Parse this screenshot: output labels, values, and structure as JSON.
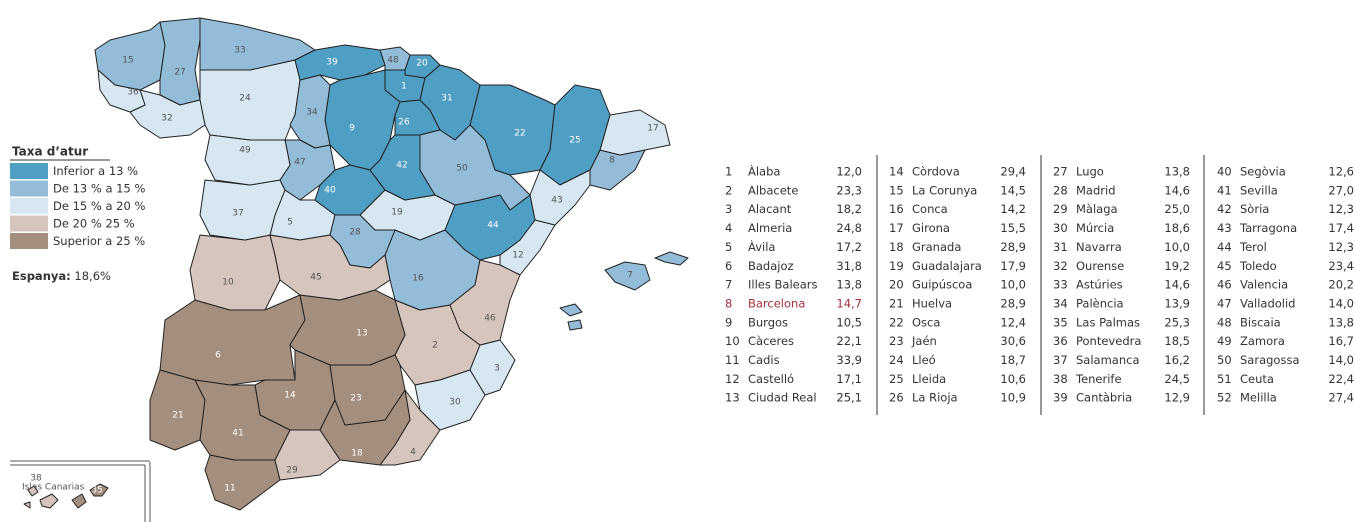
{
  "legend": {
    "title": "Taxa d’atur",
    "items": [
      {
        "label": "Inferior a 13 %",
        "color": "#4f9ec4"
      },
      {
        "label": "De 13 % a 15 %",
        "color": "#93bcd8"
      },
      {
        "label": "De 15 % a 20 %",
        "color": "#d7e7f1"
      },
      {
        "label": "De 20 % 25 %",
        "color": "#d5c5bd"
      },
      {
        "label": "Superior a 25 %",
        "color": "#a48e7d"
      }
    ]
  },
  "national": {
    "label": "Espanya:",
    "value": "18,6%"
  },
  "inset_label": "Islas Canarias",
  "provinces": [
    {
      "n": 1,
      "name": "Àlaba",
      "value": "12,0",
      "color": "#4f9ec4"
    },
    {
      "n": 2,
      "name": "Albacete",
      "value": "23,3",
      "color": "#d5c5bd"
    },
    {
      "n": 3,
      "name": "Alacant",
      "value": "18,2",
      "color": "#d7e7f1"
    },
    {
      "n": 4,
      "name": "Almeria",
      "value": "24,8",
      "color": "#d5c5bd"
    },
    {
      "n": 5,
      "name": "Àvila",
      "value": "17,2",
      "color": "#d7e7f1"
    },
    {
      "n": 6,
      "name": "Badajoz",
      "value": "31,8",
      "color": "#a48e7d"
    },
    {
      "n": 7,
      "name": "Illes Balears",
      "value": "13,8",
      "color": "#93bcd8"
    },
    {
      "n": 8,
      "name": "Barcelona",
      "value": "14,7",
      "color": "#93bcd8",
      "highlight": true
    },
    {
      "n": 9,
      "name": "Burgos",
      "value": "10,5",
      "color": "#4f9ec4"
    },
    {
      "n": 10,
      "name": "Càceres",
      "value": "22,1",
      "color": "#d5c5bd"
    },
    {
      "n": 11,
      "name": "Cadis",
      "value": "33,9",
      "color": "#a48e7d"
    },
    {
      "n": 12,
      "name": "Castelló",
      "value": "17,1",
      "color": "#d7e7f1"
    },
    {
      "n": 13,
      "name": "Ciudad Real",
      "value": "25,1",
      "color": "#a48e7d"
    },
    {
      "n": 14,
      "name": "Còrdova",
      "value": "29,4",
      "color": "#a48e7d"
    },
    {
      "n": 15,
      "name": "La Corunya",
      "value": "14,5",
      "color": "#93bcd8"
    },
    {
      "n": 16,
      "name": "Conca",
      "value": "14,2",
      "color": "#93bcd8"
    },
    {
      "n": 17,
      "name": "Girona",
      "value": "15,5",
      "color": "#d7e7f1"
    },
    {
      "n": 18,
      "name": "Granada",
      "value": "28,9",
      "color": "#a48e7d"
    },
    {
      "n": 19,
      "name": "Guadalajara",
      "value": "17,9",
      "color": "#d7e7f1"
    },
    {
      "n": 20,
      "name": "Guipúscoa",
      "value": "10,0",
      "color": "#4f9ec4"
    },
    {
      "n": 21,
      "name": "Huelva",
      "value": "28,9",
      "color": "#a48e7d"
    },
    {
      "n": 22,
      "name": "Osca",
      "value": "12,4",
      "color": "#4f9ec4"
    },
    {
      "n": 23,
      "name": "Jaén",
      "value": "30,6",
      "color": "#a48e7d"
    },
    {
      "n": 24,
      "name": "Lleó",
      "value": "18,7",
      "color": "#d7e7f1"
    },
    {
      "n": 25,
      "name": "Lleida",
      "value": "10,6",
      "color": "#4f9ec4"
    },
    {
      "n": 26,
      "name": "La Rioja",
      "value": "10,9",
      "color": "#4f9ec4"
    },
    {
      "n": 27,
      "name": "Lugo",
      "value": "13,8",
      "color": "#93bcd8"
    },
    {
      "n": 28,
      "name": "Madrid",
      "value": "14,6",
      "color": "#93bcd8"
    },
    {
      "n": 29,
      "name": "Màlaga",
      "value": "25,0",
      "color": "#d5c5bd"
    },
    {
      "n": 30,
      "name": "Múrcia",
      "value": "18,6",
      "color": "#d7e7f1"
    },
    {
      "n": 31,
      "name": "Navarra",
      "value": "10,0",
      "color": "#4f9ec4"
    },
    {
      "n": 32,
      "name": "Ourense",
      "value": "19,2",
      "color": "#d7e7f1"
    },
    {
      "n": 33,
      "name": "Astúries",
      "value": "14,6",
      "color": "#93bcd8"
    },
    {
      "n": 34,
      "name": "Palència",
      "value": "13,9",
      "color": "#93bcd8"
    },
    {
      "n": 35,
      "name": "Las Palmas",
      "value": "25,3",
      "color": "#a48e7d"
    },
    {
      "n": 36,
      "name": "Pontevedra",
      "value": "18,5",
      "color": "#d7e7f1"
    },
    {
      "n": 37,
      "name": "Salamanca",
      "value": "16,2",
      "color": "#d7e7f1"
    },
    {
      "n": 38,
      "name": "Tenerife",
      "value": "24,5",
      "color": "#d5c5bd"
    },
    {
      "n": 39,
      "name": "Cantàbria",
      "value": "12,9",
      "color": "#4f9ec4"
    },
    {
      "n": 40,
      "name": "Segòvia",
      "value": "12,6",
      "color": "#4f9ec4"
    },
    {
      "n": 41,
      "name": "Sevilla",
      "value": "27,0",
      "color": "#a48e7d"
    },
    {
      "n": 42,
      "name": "Sòria",
      "value": "12,3",
      "color": "#4f9ec4"
    },
    {
      "n": 43,
      "name": "Tarragona",
      "value": "17,4",
      "color": "#d7e7f1"
    },
    {
      "n": 44,
      "name": "Terol",
      "value": "12,3",
      "color": "#4f9ec4"
    },
    {
      "n": 45,
      "name": "Toledo",
      "value": "23,4",
      "color": "#d5c5bd"
    },
    {
      "n": 46,
      "name": "Valencia",
      "value": "20,2",
      "color": "#d5c5bd"
    },
    {
      "n": 47,
      "name": "Valladolid",
      "value": "14,0",
      "color": "#93bcd8"
    },
    {
      "n": 48,
      "name": "Biscaia",
      "value": "13,8",
      "color": "#93bcd8"
    },
    {
      "n": 49,
      "name": "Zamora",
      "value": "16,7",
      "color": "#d7e7f1"
    },
    {
      "n": 50,
      "name": "Saragossa",
      "value": "14,0",
      "color": "#93bcd8"
    },
    {
      "n": 51,
      "name": "Ceuta",
      "value": "22,4",
      "color": "#d5c5bd"
    },
    {
      "n": 52,
      "name": "Melilla",
      "value": "27,4",
      "color": "#a48e7d"
    }
  ]
}
